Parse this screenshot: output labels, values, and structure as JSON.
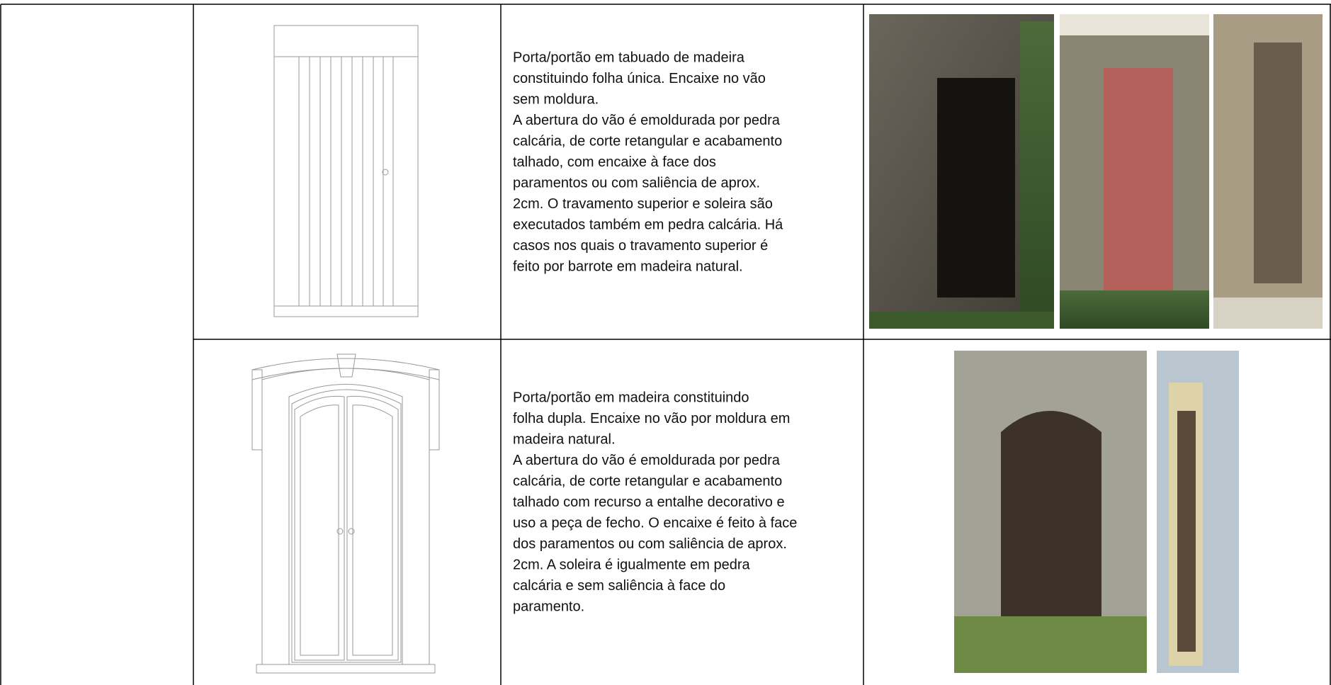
{
  "table": {
    "rows": [
      {
        "description": [
          "Porta/portão em tabuado de madeira",
          "constituindo folha única. Encaixe no vão",
          "sem moldura.",
          "A abertura do vão é emoldurada por pedra",
          "calcária, de corte retangular e acabamento",
          "talhado, com encaixe à face dos",
          "paramentos ou com saliência de aprox.",
          "2cm. O travamento superior e soleira são",
          "executados também em pedra calcária. Há",
          "casos nos quais o travamento superior é",
          "feito por barrote em madeira natural."
        ]
      },
      {
        "description": [
          "Porta/portão em madeira constituindo",
          "folha dupla. Encaixe no vão por moldura em",
          "madeira natural.",
          "A abertura do vão é emoldurada por pedra",
          "calcária, de corte retangular e acabamento",
          "talhado com recurso a entalhe decorativo e",
          "uso a peça de fecho. O encaixe é feito à face",
          "dos paramentos ou com saliência de aprox.",
          "2cm. A soleira é igualmente em pedra",
          "calcária e sem saliência à face do",
          "paramento."
        ]
      }
    ]
  }
}
